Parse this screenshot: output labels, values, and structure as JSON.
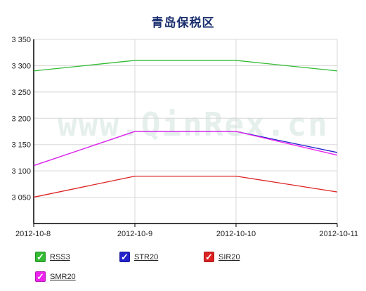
{
  "watermark": "www.QinRex.cn",
  "chart_data": {
    "type": "line",
    "title": "青岛保税区",
    "xlabel": "",
    "ylabel": "",
    "categories": [
      "2012-10-8",
      "2012-10-9",
      "2012-10-10",
      "2012-10-11"
    ],
    "ylim": [
      3000,
      3350
    ],
    "yticks": [
      3050,
      3100,
      3150,
      3200,
      3250,
      3300,
      3350
    ],
    "ytick_labels": [
      "3 050",
      "3 100",
      "3 150",
      "3 200",
      "3 250",
      "3 300",
      "3 350"
    ],
    "grid": true,
    "legend_position": "bottom",
    "series": [
      {
        "name": "RSS3",
        "color": "#33bb33",
        "values": [
          3290,
          3310,
          3310,
          3290
        ],
        "checked": true
      },
      {
        "name": "STR20",
        "color": "#2222cc",
        "values": [
          3110,
          3175,
          3175,
          3135
        ],
        "checked": true
      },
      {
        "name": "SIR20",
        "color": "#dd2222",
        "values": [
          3050,
          3090,
          3090,
          3060
        ],
        "checked": true
      },
      {
        "name": "SMR20",
        "color": "#ee22ee",
        "values": [
          3110,
          3175,
          3175,
          3130
        ],
        "checked": true
      }
    ]
  },
  "legend_check_glyph": "✓"
}
